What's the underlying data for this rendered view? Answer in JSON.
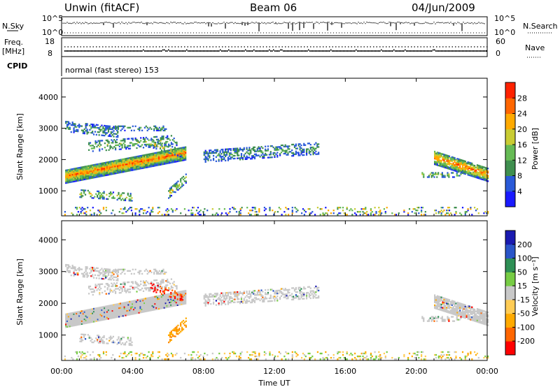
{
  "header": {
    "station": "Unwin (fitACF)",
    "beam": "Beam 06",
    "date": "04/Jun/2009"
  },
  "top_panels": {
    "nsky_label": "N.Sky",
    "nsearch_label": "N.Search",
    "nsky_ticks": [
      "10^5",
      "10^0"
    ],
    "nsky_right_ticks": [
      "10^5",
      "10^0"
    ],
    "freq_label": "Freq.",
    "freq_unit": "[MHz]",
    "freq_ticks": [
      "18",
      "8"
    ],
    "nave_label": "Nave",
    "nave_ticks": [
      "60",
      "0"
    ],
    "cpid_label": "CPID",
    "cpid_value": "normal (fast stereo) 153"
  },
  "chart_data": [
    {
      "type": "heatmap",
      "name": "power-panel",
      "ylabel": "Slant Range [km]",
      "yticks": [
        "4000",
        "3000",
        "2000",
        "1000"
      ],
      "ylim": [
        200,
        4600
      ],
      "xlim": [
        0,
        24
      ],
      "colorbar_label": "Power [dB]",
      "colorbar_ticks": [
        "28",
        "24",
        "20",
        "16",
        "12",
        "8",
        "4"
      ],
      "colorbar_colors": [
        "#1a1aff",
        "#2a5ad8",
        "#3f8f4f",
        "#66bb55",
        "#c9cc33",
        "#ffaa00",
        "#ff6600",
        "#ff2200"
      ],
      "colorbar_range": [
        0,
        32
      ]
    },
    {
      "type": "heatmap",
      "name": "velocity-panel",
      "ylabel": "Slant Range [km]",
      "yticks": [
        "4000",
        "3000",
        "2000",
        "1000"
      ],
      "ylim": [
        200,
        4600
      ],
      "xlim": [
        0,
        24
      ],
      "colorbar_label": "Velocity [m s⁻¹]",
      "colorbar_ticks": [
        "200",
        "100",
        "50",
        "15",
        "-15",
        "-50",
        "-100",
        "-200"
      ],
      "colorbar_colors": [
        "#ff0000",
        "#ff6600",
        "#ffaa00",
        "#ffcc55",
        "#c8c8c8",
        "#77cc44",
        "#2e8f55",
        "#2a55c8",
        "#1a1ab0"
      ]
    }
  ],
  "x_axis": {
    "ticks": [
      "00:00",
      "04:00",
      "08:00",
      "12:00",
      "16:00",
      "20:00",
      "00:00"
    ],
    "label": "Time UT"
  }
}
